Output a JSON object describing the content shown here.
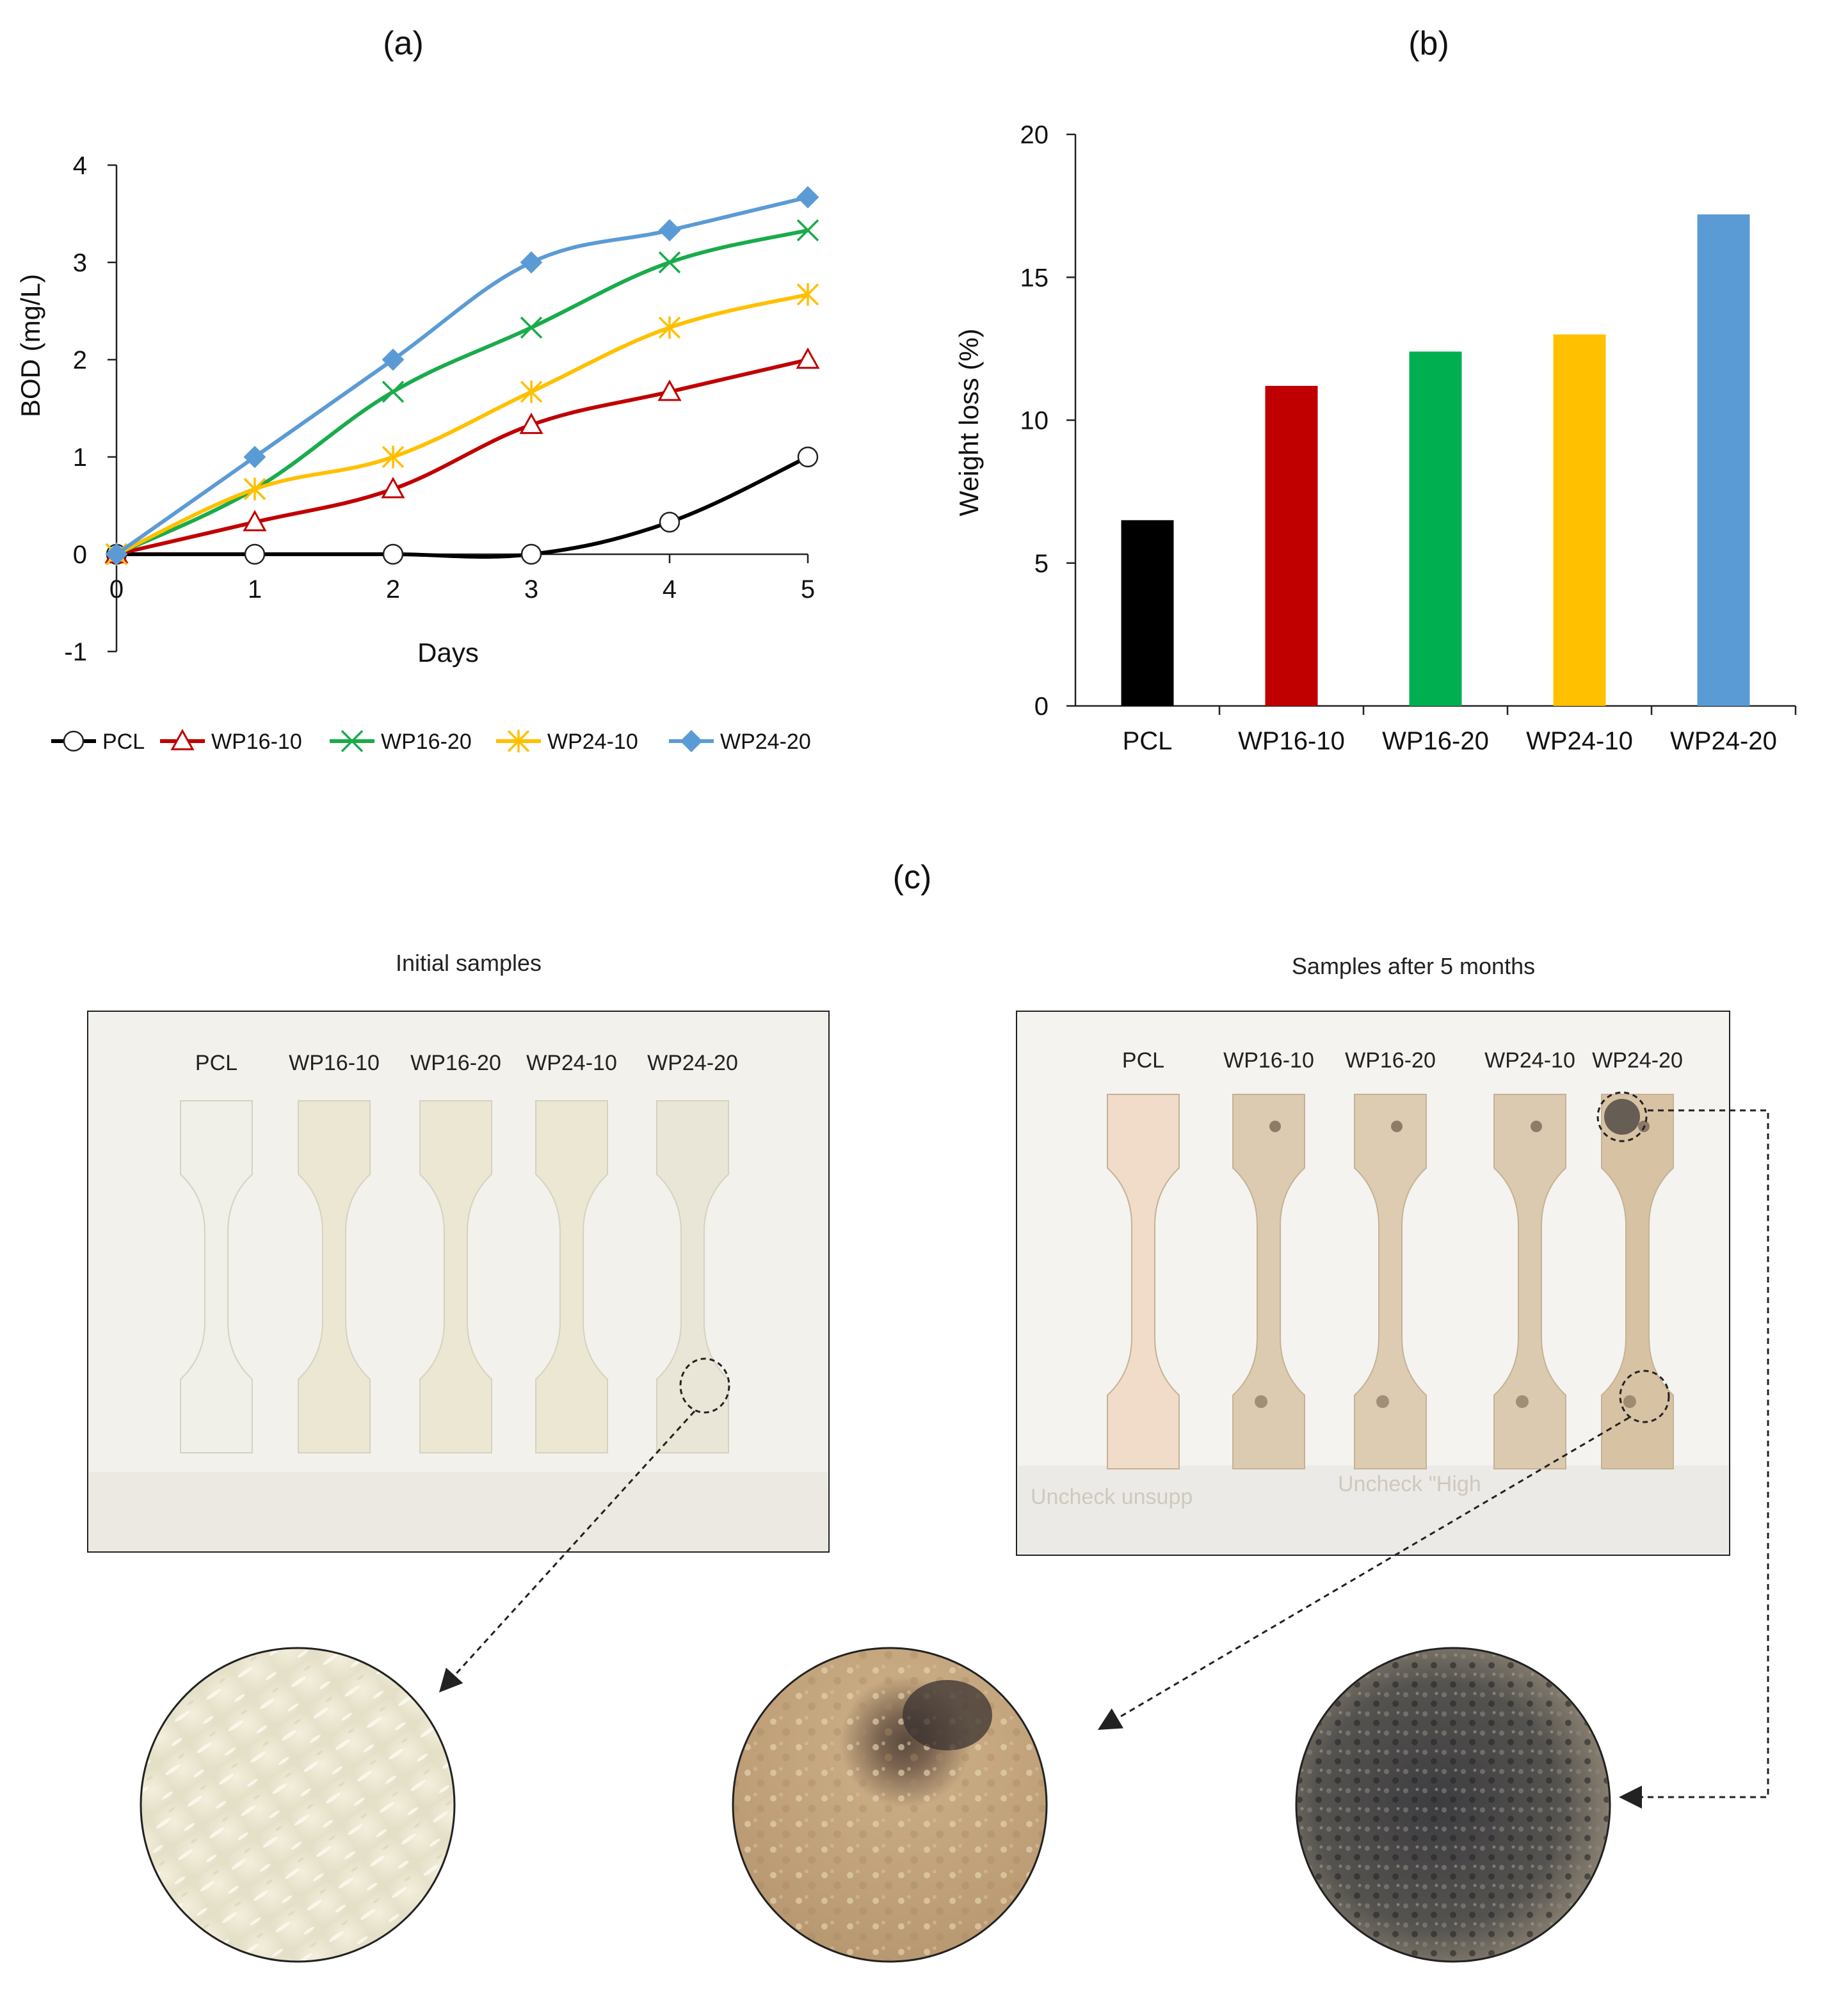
{
  "figure": {
    "panel_a_label": "(a)",
    "panel_b_label": "(b)",
    "panel_c_label": "(c)"
  },
  "chart_data": [
    {
      "type": "line",
      "title": "(a)",
      "xlabel": "Days",
      "ylabel": "BOD (mg/L)",
      "xlim": [
        0,
        5
      ],
      "ylim": [
        -1,
        4
      ],
      "x": [
        0,
        1,
        2,
        3,
        4,
        5
      ],
      "xticks": [
        "0",
        "1",
        "2",
        "3",
        "4",
        "5"
      ],
      "yticks": [
        "4",
        "3",
        "2",
        "1",
        "0",
        "-1"
      ],
      "legend_position": "bottom",
      "series": [
        {
          "name": "PCL",
          "color": "#000000",
          "marker": "circle",
          "values": [
            0,
            0,
            0,
            0,
            0.33,
            1.0
          ]
        },
        {
          "name": "WP16-10",
          "color": "#c00000",
          "marker": "triangle",
          "values": [
            0,
            0.33,
            0.67,
            1.33,
            1.67,
            2.0
          ]
        },
        {
          "name": "WP16-20",
          "color": "#1aab4b",
          "marker": "x",
          "values": [
            0,
            0.67,
            1.67,
            2.33,
            3.0,
            3.33
          ]
        },
        {
          "name": "WP24-10",
          "color": "#ffc000",
          "marker": "star",
          "values": [
            0,
            0.67,
            1.0,
            1.67,
            2.33,
            2.67
          ]
        },
        {
          "name": "WP24-20",
          "color": "#5b9bd5",
          "marker": "diamond",
          "values": [
            0,
            1.0,
            2.0,
            3.0,
            3.33,
            3.67
          ]
        }
      ]
    },
    {
      "type": "bar",
      "title": "(b)",
      "xlabel": "",
      "ylabel": "Weight loss (%)",
      "ylim": [
        0,
        20
      ],
      "yticks": [
        "20",
        "15",
        "10",
        "5",
        "0"
      ],
      "categories": [
        "PCL",
        "WP16-10",
        "WP16-20",
        "WP24-10",
        "WP24-20"
      ],
      "values": [
        6.5,
        11.2,
        12.4,
        13.0,
        17.2
      ],
      "colors": [
        "#000000",
        "#c00000",
        "#00b050",
        "#ffc000",
        "#5b9bd5"
      ]
    }
  ],
  "photos": {
    "initial_caption": "Initial samples",
    "after_caption": "Samples after 5 months",
    "initial_labels": [
      "PCL",
      "WP16-10",
      "WP16-20",
      "WP24-10",
      "WP24-20"
    ],
    "after_labels": [
      "PCL",
      "WP16-10",
      "WP16-20",
      "WP24-10",
      "WP24-20"
    ],
    "background_text": [
      "Uncheck \"High",
      "Uncheck unsupp"
    ]
  }
}
